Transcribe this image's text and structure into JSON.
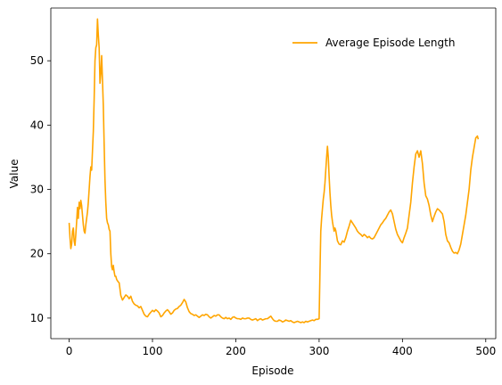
{
  "chart_data": {
    "type": "line",
    "title": "",
    "xlabel": "Episode",
    "ylabel": "Value",
    "xlim": [
      -22,
      512
    ],
    "ylim": [
      6.8,
      58.2
    ],
    "xticks": [
      0,
      100,
      200,
      300,
      400,
      500
    ],
    "yticks": [
      10,
      20,
      30,
      40,
      50
    ],
    "grid": false,
    "legend_position": "upper right",
    "series": [
      {
        "name": "Average Episode Length",
        "color": "#ffa500",
        "points": [
          [
            0,
            24.8
          ],
          [
            1,
            22.5
          ],
          [
            2,
            20.8
          ],
          [
            3,
            21.5
          ],
          [
            4,
            23.5
          ],
          [
            5,
            24.0
          ],
          [
            6,
            22.0
          ],
          [
            7,
            21.3
          ],
          [
            8,
            23.0
          ],
          [
            9,
            25.0
          ],
          [
            10,
            27.2
          ],
          [
            11,
            25.5
          ],
          [
            12,
            28.0
          ],
          [
            13,
            27.0
          ],
          [
            14,
            28.3
          ],
          [
            15,
            27.5
          ],
          [
            16,
            26.0
          ],
          [
            17,
            24.5
          ],
          [
            18,
            23.5
          ],
          [
            19,
            23.2
          ],
          [
            20,
            24.5
          ],
          [
            21,
            25.5
          ],
          [
            22,
            26.5
          ],
          [
            23,
            28.0
          ],
          [
            24,
            30.0
          ],
          [
            25,
            32.0
          ],
          [
            26,
            33.5
          ],
          [
            27,
            33.0
          ],
          [
            28,
            36.0
          ],
          [
            29,
            39.0
          ],
          [
            30,
            44.0
          ],
          [
            31,
            50.0
          ],
          [
            32,
            52.0
          ],
          [
            33,
            52.5
          ],
          [
            34,
            56.5
          ],
          [
            35,
            54.0
          ],
          [
            36,
            52.0
          ],
          [
            37,
            46.5
          ],
          [
            38,
            48.0
          ],
          [
            39,
            50.8
          ],
          [
            40,
            47.0
          ],
          [
            41,
            43.0
          ],
          [
            42,
            37.0
          ],
          [
            43,
            31.5
          ],
          [
            44,
            28.0
          ],
          [
            45,
            25.5
          ],
          [
            46,
            24.8
          ],
          [
            47,
            24.5
          ],
          [
            48,
            23.8
          ],
          [
            49,
            23.5
          ],
          [
            50,
            20.0
          ],
          [
            51,
            18.0
          ],
          [
            52,
            17.5
          ],
          [
            53,
            18.2
          ],
          [
            54,
            17.2
          ],
          [
            55,
            16.5
          ],
          [
            56,
            16.5
          ],
          [
            57,
            16.0
          ],
          [
            58,
            15.8
          ],
          [
            59,
            15.6
          ],
          [
            60,
            15.5
          ],
          [
            62,
            13.5
          ],
          [
            64,
            12.8
          ],
          [
            66,
            13.2
          ],
          [
            68,
            13.6
          ],
          [
            70,
            13.4
          ],
          [
            72,
            13.0
          ],
          [
            74,
            13.4
          ],
          [
            76,
            12.6
          ],
          [
            78,
            12.2
          ],
          [
            80,
            12.0
          ],
          [
            82,
            11.9
          ],
          [
            84,
            11.6
          ],
          [
            86,
            11.8
          ],
          [
            88,
            11.2
          ],
          [
            90,
            10.6
          ],
          [
            92,
            10.3
          ],
          [
            94,
            10.2
          ],
          [
            96,
            10.6
          ],
          [
            98,
            10.9
          ],
          [
            100,
            11.2
          ],
          [
            102,
            11.0
          ],
          [
            104,
            11.3
          ],
          [
            106,
            11.1
          ],
          [
            108,
            10.8
          ],
          [
            110,
            10.2
          ],
          [
            112,
            10.4
          ],
          [
            114,
            10.8
          ],
          [
            116,
            11.1
          ],
          [
            118,
            11.3
          ],
          [
            120,
            11.0
          ],
          [
            122,
            10.6
          ],
          [
            124,
            10.8
          ],
          [
            126,
            11.2
          ],
          [
            128,
            11.4
          ],
          [
            130,
            11.5
          ],
          [
            132,
            11.8
          ],
          [
            134,
            12.0
          ],
          [
            136,
            12.4
          ],
          [
            138,
            12.9
          ],
          [
            140,
            12.5
          ],
          [
            142,
            11.6
          ],
          [
            144,
            11.0
          ],
          [
            146,
            10.7
          ],
          [
            148,
            10.6
          ],
          [
            150,
            10.4
          ],
          [
            152,
            10.5
          ],
          [
            154,
            10.3
          ],
          [
            156,
            10.1
          ],
          [
            158,
            10.3
          ],
          [
            160,
            10.5
          ],
          [
            162,
            10.4
          ],
          [
            164,
            10.6
          ],
          [
            166,
            10.5
          ],
          [
            168,
            10.2
          ],
          [
            170,
            10.0
          ],
          [
            172,
            10.2
          ],
          [
            174,
            10.4
          ],
          [
            176,
            10.3
          ],
          [
            178,
            10.5
          ],
          [
            180,
            10.5
          ],
          [
            182,
            10.2
          ],
          [
            184,
            10.0
          ],
          [
            186,
            9.9
          ],
          [
            188,
            10.1
          ],
          [
            190,
            9.9
          ],
          [
            192,
            10.0
          ],
          [
            194,
            9.8
          ],
          [
            196,
            10.1
          ],
          [
            198,
            10.2
          ],
          [
            200,
            10.0
          ],
          [
            202,
            9.9
          ],
          [
            204,
            9.9
          ],
          [
            206,
            9.8
          ],
          [
            208,
            10.0
          ],
          [
            210,
            9.9
          ],
          [
            212,
            9.9
          ],
          [
            214,
            10.0
          ],
          [
            216,
            10.0
          ],
          [
            218,
            9.8
          ],
          [
            220,
            9.7
          ],
          [
            222,
            9.8
          ],
          [
            224,
            9.9
          ],
          [
            226,
            9.6
          ],
          [
            228,
            9.8
          ],
          [
            230,
            9.9
          ],
          [
            232,
            9.7
          ],
          [
            234,
            9.8
          ],
          [
            236,
            9.9
          ],
          [
            238,
            9.9
          ],
          [
            240,
            10.1
          ],
          [
            242,
            10.3
          ],
          [
            244,
            9.9
          ],
          [
            246,
            9.6
          ],
          [
            248,
            9.5
          ],
          [
            250,
            9.5
          ],
          [
            252,
            9.7
          ],
          [
            254,
            9.6
          ],
          [
            256,
            9.4
          ],
          [
            258,
            9.5
          ],
          [
            260,
            9.7
          ],
          [
            262,
            9.6
          ],
          [
            264,
            9.5
          ],
          [
            266,
            9.6
          ],
          [
            268,
            9.4
          ],
          [
            270,
            9.3
          ],
          [
            272,
            9.4
          ],
          [
            274,
            9.5
          ],
          [
            276,
            9.4
          ],
          [
            278,
            9.3
          ],
          [
            280,
            9.4
          ],
          [
            282,
            9.3
          ],
          [
            284,
            9.5
          ],
          [
            286,
            9.4
          ],
          [
            288,
            9.5
          ],
          [
            290,
            9.6
          ],
          [
            292,
            9.7
          ],
          [
            294,
            9.6
          ],
          [
            296,
            9.8
          ],
          [
            298,
            9.8
          ],
          [
            300,
            9.9
          ],
          [
            301,
            17.0
          ],
          [
            302,
            23.5
          ],
          [
            303,
            25.5
          ],
          [
            304,
            27.0
          ],
          [
            305,
            28.5
          ],
          [
            306,
            29.5
          ],
          [
            307,
            31.0
          ],
          [
            308,
            33.0
          ],
          [
            309,
            35.0
          ],
          [
            310,
            36.7
          ],
          [
            311,
            35.0
          ],
          [
            312,
            32.0
          ],
          [
            313,
            29.5
          ],
          [
            314,
            27.5
          ],
          [
            315,
            26.0
          ],
          [
            316,
            25.0
          ],
          [
            317,
            24.2
          ],
          [
            318,
            23.5
          ],
          [
            319,
            24.0
          ],
          [
            320,
            23.6
          ],
          [
            322,
            22.0
          ],
          [
            324,
            21.5
          ],
          [
            326,
            21.4
          ],
          [
            328,
            22.0
          ],
          [
            330,
            21.8
          ],
          [
            332,
            22.5
          ],
          [
            334,
            23.5
          ],
          [
            336,
            24.3
          ],
          [
            338,
            25.2
          ],
          [
            340,
            24.8
          ],
          [
            342,
            24.4
          ],
          [
            344,
            24.0
          ],
          [
            346,
            23.5
          ],
          [
            348,
            23.2
          ],
          [
            350,
            23.0
          ],
          [
            352,
            22.7
          ],
          [
            354,
            23.0
          ],
          [
            356,
            22.8
          ],
          [
            358,
            22.5
          ],
          [
            360,
            22.7
          ],
          [
            362,
            22.4
          ],
          [
            364,
            22.3
          ],
          [
            366,
            22.5
          ],
          [
            368,
            23.0
          ],
          [
            370,
            23.5
          ],
          [
            372,
            24.0
          ],
          [
            374,
            24.5
          ],
          [
            376,
            24.8
          ],
          [
            378,
            25.2
          ],
          [
            380,
            25.5
          ],
          [
            382,
            26.0
          ],
          [
            384,
            26.5
          ],
          [
            386,
            26.8
          ],
          [
            388,
            26.2
          ],
          [
            390,
            25.0
          ],
          [
            392,
            23.8
          ],
          [
            394,
            23.0
          ],
          [
            396,
            22.5
          ],
          [
            398,
            22.0
          ],
          [
            400,
            21.7
          ],
          [
            402,
            22.5
          ],
          [
            404,
            23.2
          ],
          [
            406,
            24.0
          ],
          [
            408,
            26.0
          ],
          [
            410,
            28.0
          ],
          [
            412,
            31.0
          ],
          [
            414,
            33.5
          ],
          [
            416,
            35.5
          ],
          [
            418,
            36.0
          ],
          [
            420,
            35.0
          ],
          [
            422,
            36.0
          ],
          [
            424,
            34.0
          ],
          [
            426,
            31.0
          ],
          [
            428,
            29.0
          ],
          [
            430,
            28.5
          ],
          [
            432,
            27.5
          ],
          [
            434,
            26.0
          ],
          [
            436,
            25.0
          ],
          [
            438,
            25.8
          ],
          [
            440,
            26.5
          ],
          [
            442,
            27.0
          ],
          [
            444,
            26.8
          ],
          [
            446,
            26.5
          ],
          [
            448,
            26.2
          ],
          [
            450,
            25.0
          ],
          [
            452,
            23.0
          ],
          [
            454,
            22.0
          ],
          [
            456,
            21.7
          ],
          [
            458,
            21.0
          ],
          [
            460,
            20.4
          ],
          [
            462,
            20.1
          ],
          [
            464,
            20.2
          ],
          [
            466,
            20.0
          ],
          [
            468,
            20.6
          ],
          [
            470,
            21.5
          ],
          [
            472,
            23.0
          ],
          [
            474,
            24.5
          ],
          [
            476,
            26.0
          ],
          [
            478,
            28.0
          ],
          [
            480,
            30.0
          ],
          [
            482,
            33.0
          ],
          [
            484,
            35.0
          ],
          [
            486,
            36.5
          ],
          [
            488,
            38.0
          ],
          [
            490,
            38.3
          ],
          [
            491,
            37.8
          ]
        ]
      }
    ]
  }
}
